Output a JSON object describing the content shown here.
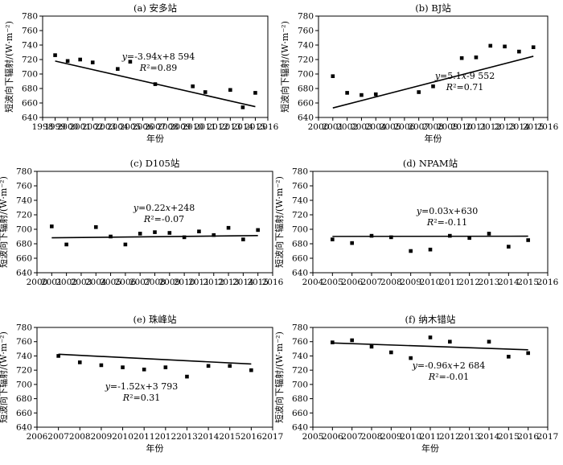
{
  "chart_data": [
    {
      "type": "scatter",
      "title": "(a) 安多站",
      "xlabel": "年份",
      "ylabel": "短波向下辐射/(W·m⁻²)",
      "xlim": [
        1998,
        2016
      ],
      "xticks": [
        1998,
        1999,
        2000,
        2001,
        2002,
        2003,
        2004,
        2005,
        2006,
        2007,
        2008,
        2009,
        2010,
        2011,
        2012,
        2013,
        2014,
        2015,
        2016
      ],
      "ylim": [
        640,
        780
      ],
      "yticks": [
        640,
        660,
        680,
        700,
        720,
        740,
        760,
        780
      ],
      "points": [
        [
          1999,
          726
        ],
        [
          2000,
          718
        ],
        [
          2001,
          720
        ],
        [
          2002,
          716
        ],
        [
          2004,
          707
        ],
        [
          2005,
          717
        ],
        [
          2007,
          686
        ],
        [
          2010,
          683
        ],
        [
          2011,
          675
        ],
        [
          2013,
          678
        ],
        [
          2014,
          654
        ],
        [
          2015,
          674
        ]
      ],
      "trend": {
        "kind": "linear",
        "slope": -3.94,
        "intercept": 8594,
        "x_range": [
          1999,
          2015
        ]
      },
      "equation": "y=-3.94x+8 594",
      "r2": "R²=0.89"
    },
    {
      "type": "scatter",
      "title": "(b) BJ站",
      "xlabel": "年份",
      "ylabel": "短波向下辐射/(W·m⁻²)",
      "xlim": [
        2000,
        2016
      ],
      "xticks": [
        2000,
        2001,
        2002,
        2003,
        2004,
        2005,
        2006,
        2007,
        2008,
        2009,
        2010,
        2011,
        2012,
        2013,
        2014,
        2015,
        2016
      ],
      "ylim": [
        640,
        780
      ],
      "yticks": [
        640,
        660,
        680,
        700,
        720,
        740,
        760,
        780
      ],
      "points": [
        [
          2001,
          697
        ],
        [
          2002,
          674
        ],
        [
          2003,
          671
        ],
        [
          2004,
          672
        ],
        [
          2007,
          675
        ],
        [
          2008,
          683
        ],
        [
          2010,
          722
        ],
        [
          2011,
          723
        ],
        [
          2012,
          739
        ],
        [
          2013,
          738
        ],
        [
          2014,
          731
        ],
        [
          2015,
          737
        ]
      ],
      "trend": {
        "kind": "linear",
        "slope": 5.1,
        "intercept": -9552,
        "x_range": [
          2001,
          2015
        ]
      },
      "equation": "y=5.1x-9 552",
      "r2": "R²=0.71"
    },
    {
      "type": "scatter",
      "title": "(c) D105站",
      "xlabel": "",
      "ylabel": "短波向下辐射/(W·m⁻²)",
      "xlim": [
        2000,
        2016
      ],
      "xticks": [
        2000,
        2001,
        2002,
        2003,
        2004,
        2005,
        2006,
        2007,
        2008,
        2009,
        2010,
        2011,
        2012,
        2013,
        2014,
        2015,
        2016
      ],
      "ylim": [
        640,
        780
      ],
      "yticks": [
        640,
        660,
        680,
        700,
        720,
        740,
        760,
        780
      ],
      "points": [
        [
          2001,
          704
        ],
        [
          2002,
          679
        ],
        [
          2004,
          703
        ],
        [
          2005,
          690
        ],
        [
          2006,
          679
        ],
        [
          2007,
          694
        ],
        [
          2008,
          696
        ],
        [
          2009,
          695
        ],
        [
          2010,
          689
        ],
        [
          2011,
          697
        ],
        [
          2012,
          692
        ],
        [
          2013,
          702
        ],
        [
          2014,
          686
        ],
        [
          2015,
          699
        ]
      ],
      "trend": {
        "kind": "linear",
        "slope": 0.22,
        "intercept": 248,
        "x_range": [
          2001,
          2015
        ]
      },
      "equation": "y=0.22x+248",
      "r2": "R²=-0.07"
    },
    {
      "type": "scatter",
      "title": "(d) NPAM站",
      "xlabel": "",
      "ylabel": "短波向下辐射/(W·m⁻²)",
      "xlim": [
        2004,
        2016
      ],
      "xticks": [
        2004,
        2005,
        2006,
        2007,
        2008,
        2009,
        2010,
        2011,
        2012,
        2013,
        2014,
        2015,
        2016
      ],
      "ylim": [
        640,
        780
      ],
      "yticks": [
        640,
        660,
        680,
        700,
        720,
        740,
        760,
        780
      ],
      "points": [
        [
          2005,
          686
        ],
        [
          2006,
          681
        ],
        [
          2007,
          691
        ],
        [
          2008,
          689
        ],
        [
          2009,
          670
        ],
        [
          2010,
          672
        ],
        [
          2011,
          691
        ],
        [
          2012,
          688
        ],
        [
          2013,
          694
        ],
        [
          2014,
          676
        ],
        [
          2015,
          685
        ]
      ],
      "trend": {
        "kind": "linear",
        "slope": 0.03,
        "intercept": 630,
        "x_range": [
          2005,
          2015
        ]
      },
      "equation": "y=0.03x+630",
      "r2": "R²=-0.11"
    },
    {
      "type": "scatter",
      "title": "(e) 珠峰站",
      "xlabel": "年份",
      "ylabel": "短波向下辐射/(W·m⁻²)",
      "xlim": [
        2006,
        2017
      ],
      "xticks": [
        2006,
        2007,
        2008,
        2009,
        2010,
        2011,
        2012,
        2013,
        2014,
        2015,
        2016,
        2017
      ],
      "ylim": [
        640,
        780
      ],
      "yticks": [
        640,
        660,
        680,
        700,
        720,
        740,
        760,
        780
      ],
      "points": [
        [
          2007,
          740
        ],
        [
          2008,
          731
        ],
        [
          2009,
          727
        ],
        [
          2010,
          724
        ],
        [
          2011,
          721
        ],
        [
          2012,
          724
        ],
        [
          2013,
          711
        ],
        [
          2014,
          726
        ],
        [
          2015,
          726
        ],
        [
          2016,
          720
        ]
      ],
      "trend": {
        "kind": "linear",
        "slope": -1.52,
        "intercept": 3793,
        "x_range": [
          2007,
          2016
        ]
      },
      "equation": "y=-1.52x+3 793",
      "r2": "R²=0.31"
    },
    {
      "type": "scatter",
      "title": "(f) 纳木错站",
      "xlabel": "年份",
      "ylabel": "短波向下辐射/(W·m⁻²)",
      "xlim": [
        2005,
        2017
      ],
      "xticks": [
        2005,
        2006,
        2007,
        2008,
        2009,
        2010,
        2011,
        2012,
        2013,
        2014,
        2015,
        2016,
        2017
      ],
      "ylim": [
        640,
        780
      ],
      "yticks": [
        640,
        660,
        680,
        700,
        720,
        740,
        760,
        780
      ],
      "points": [
        [
          2006,
          759
        ],
        [
          2007,
          762
        ],
        [
          2008,
          753
        ],
        [
          2009,
          745
        ],
        [
          2010,
          737
        ],
        [
          2011,
          766
        ],
        [
          2012,
          760
        ],
        [
          2014,
          760
        ],
        [
          2015,
          739
        ],
        [
          2016,
          744
        ]
      ],
      "trend": {
        "kind": "linear",
        "slope": -0.96,
        "intercept": 2684,
        "x_range": [
          2006,
          2016
        ]
      },
      "equation": "y=-0.96x+2 684",
      "r2": "R²=-0.01"
    }
  ]
}
